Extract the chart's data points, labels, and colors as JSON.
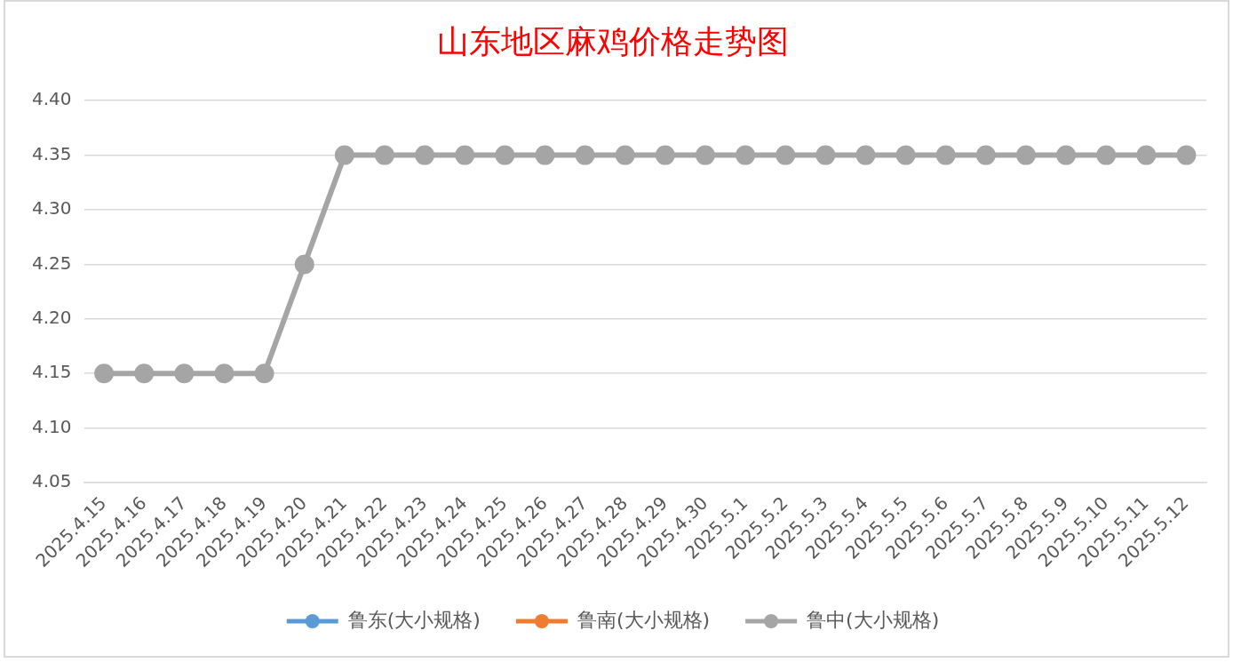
{
  "chart_data": {
    "type": "line",
    "title": "山东地区麻鸡价格走势图",
    "categories": [
      "2025.4.15",
      "2025.4.16",
      "2025.4.17",
      "2025.4.18",
      "2025.4.19",
      "2025.4.20",
      "2025.4.21",
      "2025.4.22",
      "2025.4.23",
      "2025.4.24",
      "2025.4.25",
      "2025.4.26",
      "2025.4.27",
      "2025.4.28",
      "2025.4.29",
      "2025.4.30",
      "2025.5.1",
      "2025.5.2",
      "2025.5.3",
      "2025.5.4",
      "2025.5.5",
      "2025.5.6",
      "2025.5.7",
      "2025.5.8",
      "2025.5.9",
      "2025.5.10",
      "2025.5.11",
      "2025.5.12"
    ],
    "series": [
      {
        "name": "鲁东(大小规格)",
        "color": "#5b9bd5",
        "values": [
          null,
          null,
          null,
          null,
          null,
          null,
          null,
          null,
          null,
          null,
          null,
          null,
          null,
          null,
          null,
          null,
          null,
          null,
          null,
          null,
          null,
          null,
          null,
          null,
          null,
          null,
          null,
          null
        ]
      },
      {
        "name": "鲁南(大小规格)",
        "color": "#ed7d31",
        "values": [
          null,
          null,
          null,
          null,
          null,
          null,
          null,
          null,
          null,
          null,
          null,
          null,
          null,
          null,
          null,
          null,
          null,
          null,
          null,
          null,
          null,
          null,
          null,
          null,
          null,
          null,
          null,
          null
        ]
      },
      {
        "name": "鲁中(大小规格)",
        "color": "#a5a5a5",
        "values": [
          4.15,
          4.15,
          4.15,
          4.15,
          4.15,
          4.25,
          4.35,
          4.35,
          4.35,
          4.35,
          4.35,
          4.35,
          4.35,
          4.35,
          4.35,
          4.35,
          4.35,
          4.35,
          4.35,
          4.35,
          4.35,
          4.35,
          4.35,
          4.35,
          4.35,
          4.35,
          4.35,
          4.35
        ]
      }
    ],
    "ylim": [
      4.05,
      4.4
    ],
    "yticks": [
      {
        "value": 4.05,
        "label": "4.05"
      },
      {
        "value": 4.1,
        "label": "4.10"
      },
      {
        "value": 4.15,
        "label": "4.15"
      },
      {
        "value": 4.2,
        "label": "4.20"
      },
      {
        "value": 4.25,
        "label": "4.25"
      },
      {
        "value": 4.3,
        "label": "4.30"
      },
      {
        "value": 4.35,
        "label": "4.35"
      },
      {
        "value": 4.4,
        "label": "4.40"
      }
    ],
    "grid": "y",
    "legend": "bottom",
    "marker": "circle",
    "line_style": "solid"
  }
}
